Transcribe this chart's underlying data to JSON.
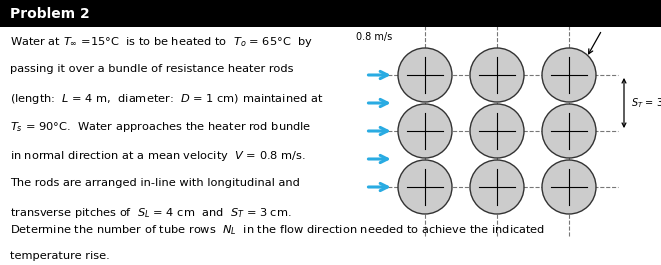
{
  "title": "Problem 2",
  "title_bg": "#000000",
  "title_color": "#ffffff",
  "bg_color": "#ffffff",
  "text_color": "#000000",
  "arrow_color": "#29ABE2",
  "body_text_lines": [
    "Water at $T_{\\infty}$ =15°C  is to be heated to  $T_o$ = 65°C  by",
    "passing it over a bundle of resistance heater rods",
    "(length:  $L$ = 4 m,  diameter:  $D$ = 1 cm) maintained at",
    "$T_s$ = 90°C.  Water approaches the heater rod bundle",
    "in normal direction at a mean velocity  $V$ = 0.8 m/s.",
    "The rods are arranged in-line with longitudinal and",
    "transverse pitches of  $S_L$ = 4 cm  and  $S_T$ = 3 cm."
  ],
  "bottom_text_lines": [
    "Determine the number of tube rows  $N_L$  in the flow direction needed to achieve the indicated",
    "temperature rise."
  ],
  "dashed_color": "#777777",
  "circle_fill": "#cccccc",
  "circle_edge": "#333333",
  "font_size_body": 8.2,
  "font_size_small": 7.0
}
